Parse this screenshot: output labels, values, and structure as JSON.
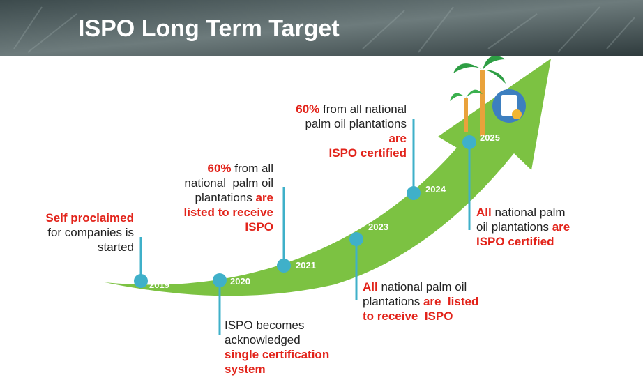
{
  "header": {
    "title": "ISPO Long Term Target"
  },
  "milestones": [
    {
      "year": "2019",
      "lines": [
        [
          {
            "text": "Self proclaimed",
            "red": true
          }
        ],
        [
          {
            "text": "for companies is",
            "red": false
          }
        ],
        [
          {
            "text": "started",
            "red": false
          }
        ]
      ]
    },
    {
      "year": "2020",
      "lines": [
        [
          {
            "text": "ISPO becomes",
            "red": false
          }
        ],
        [
          {
            "text": "acknowledged",
            "red": false
          }
        ],
        [
          {
            "text": "single certification",
            "red": true
          }
        ],
        [
          {
            "text": "system",
            "red": true
          }
        ]
      ]
    },
    {
      "year": "2021",
      "lines": [
        [
          {
            "text": "60%",
            "red": true
          },
          {
            "text": " from all",
            "red": false
          }
        ],
        [
          {
            "text": "national  palm oil",
            "red": false
          }
        ],
        [
          {
            "text": "plantations ",
            "red": false
          },
          {
            "text": "are",
            "red": true
          }
        ],
        [
          {
            "text": "listed to receive",
            "red": true
          }
        ],
        [
          {
            "text": "ISPO",
            "red": true
          }
        ]
      ]
    },
    {
      "year": "2023",
      "lines": [
        [
          {
            "text": "All",
            "red": true
          },
          {
            "text": " national palm oil",
            "red": false
          }
        ],
        [
          {
            "text": "plantations ",
            "red": false
          },
          {
            "text": "are  listed",
            "red": true
          }
        ],
        [
          {
            "text": "to receive  ISPO",
            "red": true
          }
        ]
      ]
    },
    {
      "year": "2024",
      "lines": [
        [
          {
            "text": "60%",
            "red": true
          },
          {
            "text": " from all national",
            "red": false
          }
        ],
        [
          {
            "text": "palm oil plantations",
            "red": false
          }
        ],
        [
          {
            "text": "are",
            "red": true
          }
        ],
        [
          {
            "text": "ISPO certified",
            "red": true
          }
        ]
      ]
    },
    {
      "year": "2025",
      "lines": [
        [
          {
            "text": "All",
            "red": true
          },
          {
            "text": " national palm",
            "red": false
          }
        ],
        [
          {
            "text": "oil plantations ",
            "red": false
          },
          {
            "text": "are",
            "red": true
          }
        ],
        [
          {
            "text": "ISPO certified",
            "red": true
          }
        ]
      ]
    }
  ]
}
